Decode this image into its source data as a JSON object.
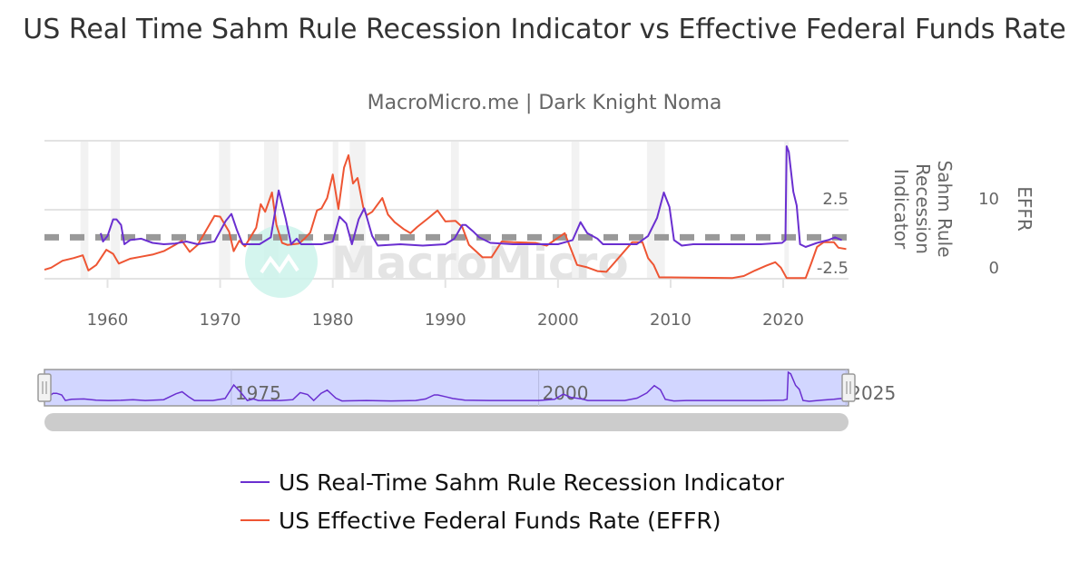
{
  "chart_data": {
    "type": "line",
    "title": "US Real Time Sahm Rule Recession Indicator vs Effective Federal Funds Rate",
    "subtitle": "MacroMicro.me | Dark Knight Noma",
    "watermark": "MacroMicro",
    "x_range": [
      1954.4,
      2025.8
    ],
    "x_ticks": [
      "1960",
      "1970",
      "1980",
      "1990",
      "2000",
      "2010",
      "2020"
    ],
    "y_axes": [
      {
        "title": "Sahm Rule Recession Indicator",
        "range": [
          -2.5,
          7.5
        ],
        "ticks": [
          "2.5",
          "-2.5"
        ],
        "tick_values": [
          2.5,
          -2.5
        ]
      },
      {
        "title": "EFFR",
        "range": [
          0,
          20
        ],
        "ticks": [
          "10",
          "0"
        ],
        "tick_values": [
          10,
          0
        ]
      }
    ],
    "grid": true,
    "threshold_line": {
      "value": 0.5,
      "axis": "Sahm",
      "color": "#999999",
      "style": "dashed"
    },
    "recessions": [
      [
        1957.6,
        1958.3
      ],
      [
        1960.3,
        1961.1
      ],
      [
        1969.9,
        1970.9
      ],
      [
        1973.9,
        1975.2
      ],
      [
        1980.0,
        1980.5
      ],
      [
        1981.5,
        1982.9
      ],
      [
        1990.5,
        1991.2
      ],
      [
        2001.2,
        2001.9
      ],
      [
        2007.9,
        2009.5
      ],
      [
        2020.1,
        2020.3
      ]
    ],
    "legend_position": "bottom",
    "series": [
      {
        "name": "US Real-Time Sahm Rule Recession Indicator",
        "color": "#6a2fd0",
        "axis": 0,
        "x": [
          1959.4,
          1959.6,
          1960.0,
          1960.5,
          1960.8,
          1961.2,
          1961.5,
          1962.0,
          1963.0,
          1964.0,
          1965.0,
          1966.0,
          1967.0,
          1968.0,
          1969.5,
          1970.5,
          1971.0,
          1971.5,
          1972.0,
          1973.5,
          1974.5,
          1975.2,
          1975.8,
          1976.3,
          1976.8,
          1977.2,
          1979.0,
          1980.0,
          1980.6,
          1981.2,
          1981.7,
          1982.3,
          1982.8,
          1983.5,
          1984.0,
          1986.0,
          1988.0,
          1990.0,
          1990.8,
          1991.5,
          1991.8,
          1992.5,
          1993.0,
          1994.0,
          1996.0,
          1998.0,
          2000.0,
          2001.3,
          2002.0,
          2002.6,
          2003.5,
          2004.0,
          2007.0,
          2008.0,
          2008.8,
          2009.4,
          2009.9,
          2010.3,
          2011.0,
          2012.0,
          2015.0,
          2018.0,
          2019.9,
          2020.2,
          2020.3,
          2020.5,
          2020.9,
          2021.2,
          2021.5,
          2022.0,
          2023.0,
          2024.0,
          2024.6,
          2025.2
        ],
        "y": [
          0.8,
          0.2,
          0.6,
          1.8,
          1.8,
          1.4,
          0.0,
          0.3,
          0.4,
          0.1,
          0.0,
          0.05,
          0.2,
          0.0,
          0.2,
          1.7,
          2.2,
          1.0,
          0.0,
          0.0,
          0.5,
          3.9,
          1.9,
          0.0,
          0.4,
          0.0,
          0.0,
          0.2,
          2.0,
          1.5,
          0.0,
          1.8,
          2.6,
          0.6,
          -0.1,
          0.0,
          -0.1,
          0.0,
          0.4,
          1.4,
          1.4,
          0.9,
          0.5,
          0.1,
          0.0,
          0.0,
          0.0,
          0.3,
          1.6,
          0.8,
          0.4,
          0.0,
          0.0,
          0.6,
          1.9,
          3.75,
          2.7,
          0.3,
          -0.1,
          0.0,
          0.0,
          0.0,
          0.1,
          0.3,
          7.1,
          6.7,
          3.8,
          2.8,
          0.0,
          -0.2,
          0.1,
          0.3,
          0.5,
          0.3
        ]
      },
      {
        "name": "US Effective Federal Funds Rate (EFFR)",
        "color": "#ee5533",
        "axis": 1,
        "x": [
          1954.4,
          1955.0,
          1956.0,
          1957.0,
          1957.8,
          1958.3,
          1959.0,
          1959.9,
          1960.5,
          1961.0,
          1962.0,
          1963.0,
          1964.0,
          1965.0,
          1966.0,
          1966.6,
          1967.3,
          1968.0,
          1969.5,
          1970.0,
          1970.8,
          1971.2,
          1971.7,
          1972.2,
          1973.2,
          1973.6,
          1974.0,
          1974.6,
          1975.0,
          1975.5,
          1976.0,
          1977.0,
          1977.5,
          1978.0,
          1978.6,
          1979.0,
          1979.5,
          1980.0,
          1980.5,
          1981.0,
          1981.4,
          1981.8,
          1982.2,
          1982.7,
          1983.0,
          1983.5,
          1984.4,
          1984.9,
          1985.5,
          1986.3,
          1986.9,
          1987.5,
          1988.5,
          1989.3,
          1990.0,
          1990.9,
          1991.5,
          1992.1,
          1993.3,
          1994.1,
          1995.0,
          1996.0,
          1998.0,
          1999.0,
          2000.6,
          2001.7,
          2002.5,
          2003.5,
          2004.3,
          2005.0,
          2006.6,
          2007.5,
          2008.0,
          2008.5,
          2009.0,
          2010.0,
          2015.5,
          2016.5,
          2017.5,
          2018.5,
          2019.3,
          2019.8,
          2020.3,
          2022.0,
          2022.5,
          2023.0,
          2023.6,
          2024.5,
          2024.9,
          2025.6
        ],
        "y": [
          1.3,
          1.6,
          2.6,
          3.0,
          3.4,
          1.2,
          2.0,
          4.2,
          3.6,
          2.2,
          2.9,
          3.2,
          3.5,
          4.0,
          4.9,
          5.5,
          3.9,
          4.9,
          9.1,
          9.0,
          6.8,
          4.0,
          5.5,
          4.7,
          7.4,
          10.8,
          9.7,
          12.5,
          7.8,
          5.2,
          4.9,
          5.1,
          5.8,
          6.7,
          9.9,
          10.2,
          11.7,
          15.1,
          10.1,
          16.1,
          17.9,
          13.8,
          14.6,
          10.4,
          9.2,
          9.7,
          11.7,
          9.3,
          8.2,
          7.2,
          6.6,
          7.5,
          8.8,
          9.9,
          8.3,
          8.4,
          7.5,
          4.9,
          3.1,
          3.1,
          5.4,
          5.3,
          5.2,
          4.8,
          6.6,
          2.0,
          1.7,
          1.1,
          1.0,
          2.3,
          5.3,
          5.3,
          3.0,
          2.0,
          0.2,
          0.2,
          0.1,
          0.4,
          1.2,
          1.9,
          2.4,
          1.6,
          0.1,
          0.1,
          2.3,
          4.6,
          5.3,
          5.3,
          4.5,
          4.3
        ]
      }
    ],
    "navigator": {
      "x_ticks": [
        "1975",
        "2000",
        "2025"
      ],
      "tick_values": [
        1975,
        2000,
        2025
      ],
      "range": [
        1959.8,
        2025.2
      ],
      "series": 0
    }
  }
}
